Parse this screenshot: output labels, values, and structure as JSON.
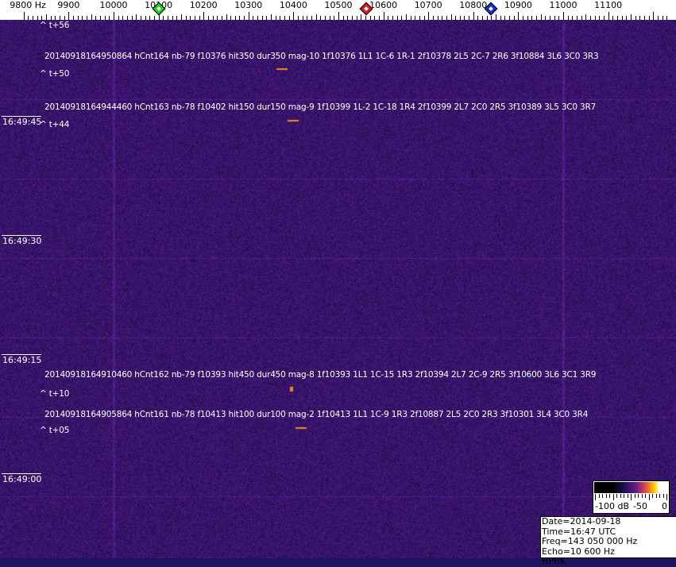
{
  "axis": {
    "unit_label": "9800 Hz",
    "freq_labels": [
      "9900",
      "10000",
      "10100",
      "10200",
      "10300",
      "10400",
      "10500",
      "10600",
      "10700",
      "10800",
      "10900",
      "11000",
      "11100"
    ],
    "markers": [
      {
        "name": "green-marker",
        "freq": 10100,
        "color": "#22cc22"
      },
      {
        "name": "red-marker",
        "freq": 10562,
        "color": "#cc2222"
      },
      {
        "name": "blue-marker",
        "freq": 10839,
        "color": "#1a2acc"
      }
    ]
  },
  "time_labels": [
    "16:49:45",
    "16:49:30",
    "16:49:15",
    "16:49:00"
  ],
  "offset_labels": [
    "^ t+56",
    "^ t+50",
    "^ t+44",
    "^ t+10",
    "^ t+05"
  ],
  "detections": [
    "20140918164950864 hCnt164 nb-79 f10376 hit350 dur350 mag-10 1f10376 1L1 1C-6 1R-1 2f10378 2L5 2C-7 2R6 3f10884 3L6 3C0 3R3",
    "20140918164944460 hCnt163 nb-78 f10402 hit150 dur150 mag-9 1f10399 1L-2 1C-18 1R4 2f10399 2L7 2C0 2R5 3f10389 3L5 3C0 3R7",
    "20140918164910460 hCnt162 nb-79 f10393 hit450 dur450 mag-8 1f10393 1L1 1C-15 1R3 2f10394 2L7 2C-9 2R5 3f10600 3L6 3C1 3R9",
    "20140918164905864 hCnt161 nb-78 f10413 hit100 dur100 mag-2 1f10413 1L1 1C-9 1R3 2f10887 2L5 2C0 2R3 3f10301 3L4 3C0 3R4"
  ],
  "colorbar": {
    "labels": [
      "-100 dB",
      "-50",
      "0"
    ]
  },
  "info": {
    "date_time": "Date=2014-09-18 Time=16:47 UTC",
    "freq": "Freq=143 050 000 Hz",
    "echo": "Echo=10 600 Hz",
    "station": "HPHK"
  }
}
